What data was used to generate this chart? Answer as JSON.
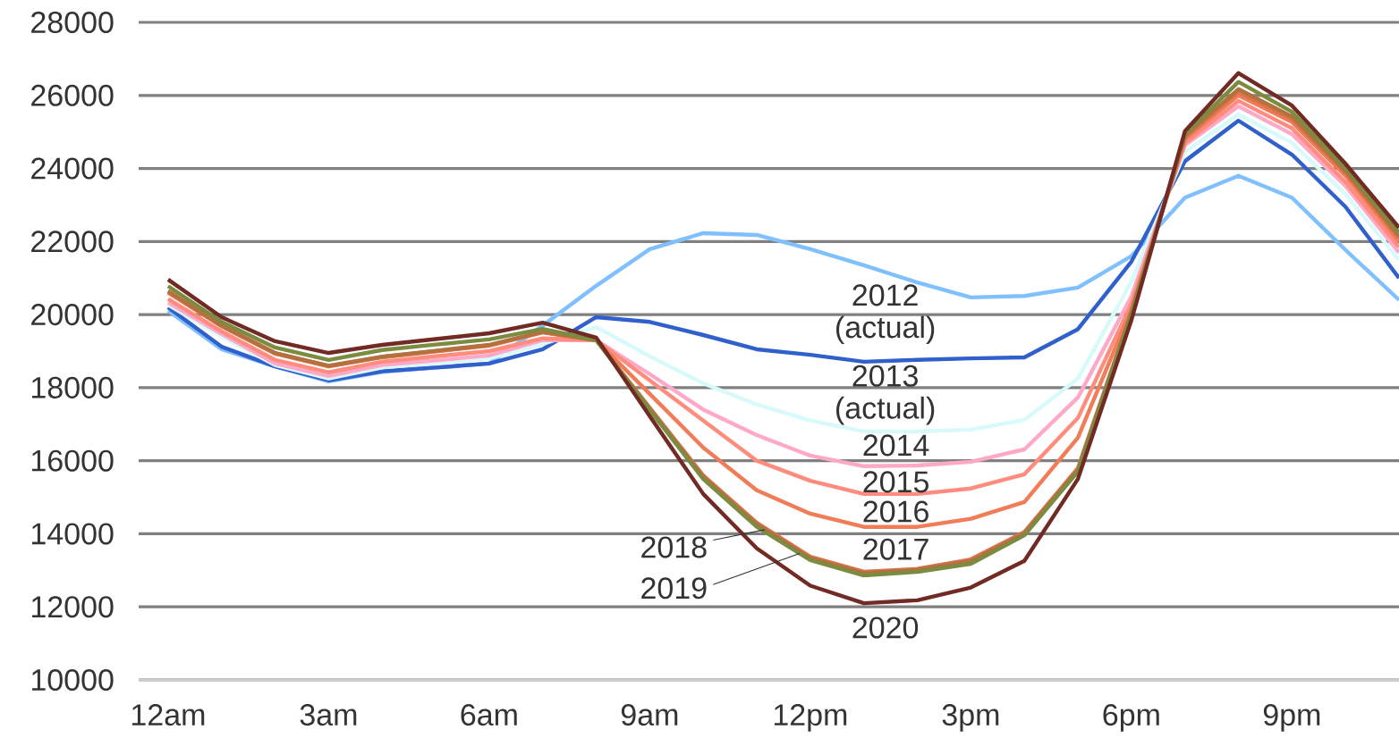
{
  "chart_data": {
    "type": "line",
    "categories": [
      "12am",
      null,
      null,
      "3am",
      null,
      null,
      "6am",
      null,
      null,
      "9am",
      null,
      null,
      "12pm",
      null,
      null,
      "3pm",
      null,
      null,
      "6pm",
      null,
      null,
      "9pm",
      null,
      null
    ],
    "ylim": [
      10000,
      28000
    ],
    "yticks": [
      10000,
      12000,
      14000,
      16000,
      18000,
      20000,
      22000,
      24000,
      26000,
      28000
    ],
    "grid": "y",
    "line_style": "solid",
    "series": [
      {
        "color": "#80c0ff",
        "values": [
          20110,
          19050,
          18580,
          18170,
          18430,
          18550,
          18660,
          19700,
          20790,
          21790,
          22230,
          22180,
          21790,
          21350,
          20880,
          20470,
          20510,
          20740,
          21600,
          23200,
          23800,
          23200,
          21770,
          20400
        ]
      },
      {
        "name": "2012 (actual)",
        "color": "#3060cc",
        "values": [
          20200,
          19120,
          18580,
          18200,
          18450,
          18550,
          18660,
          19050,
          19930,
          19800,
          19440,
          19050,
          18900,
          18710,
          18760,
          18800,
          18830,
          19600,
          21450,
          24200,
          25310,
          24380,
          22950,
          21000
        ]
      },
      {
        "name": "2013 (actual)",
        "color": "#d8fafa",
        "values": [
          20270,
          19400,
          18620,
          18250,
          18550,
          18680,
          18800,
          19200,
          19660,
          18860,
          18120,
          17540,
          17100,
          16800,
          16800,
          16850,
          17120,
          18250,
          20900,
          24450,
          25480,
          24700,
          23300,
          21500
        ]
      },
      {
        "name": "2014",
        "color": "#ffa8c8",
        "values": [
          20330,
          19470,
          18660,
          18320,
          18620,
          18750,
          18880,
          19300,
          19300,
          18370,
          17400,
          16700,
          16140,
          15850,
          15870,
          15970,
          16310,
          17730,
          20500,
          24640,
          25700,
          24940,
          23520,
          21700
        ]
      },
      {
        "name": "2015",
        "color": "#ff8c7c",
        "values": [
          20430,
          19540,
          18760,
          18420,
          18710,
          18860,
          19000,
          19350,
          19300,
          18200,
          17100,
          16000,
          15450,
          15090,
          15090,
          15240,
          15630,
          17170,
          20300,
          24700,
          25850,
          25100,
          23630,
          21850
        ]
      },
      {
        "name": "2016",
        "color": "#f07c58",
        "values": [
          20600,
          19680,
          18930,
          18580,
          18830,
          18990,
          19150,
          19510,
          19300,
          17830,
          16360,
          15190,
          14550,
          14190,
          14190,
          14410,
          14870,
          16630,
          20150,
          24800,
          26000,
          25270,
          23800,
          22000
        ]
      },
      {
        "name": "2017",
        "color": "#d9734a",
        "values": [
          20620,
          19690,
          18940,
          18590,
          18840,
          19000,
          19160,
          19520,
          19300,
          17450,
          15600,
          14300,
          13370,
          12960,
          13040,
          13300,
          14050,
          15800,
          20050,
          24850,
          26100,
          25350,
          23880,
          22100
        ]
      },
      {
        "name": "2018",
        "color": "#b3713f",
        "values": [
          20650,
          19700,
          18950,
          18600,
          18850,
          19010,
          19170,
          19530,
          19300,
          17420,
          15550,
          14250,
          13330,
          12920,
          13010,
          13250,
          14000,
          15750,
          20050,
          24900,
          26170,
          25420,
          23930,
          22150
        ]
      },
      {
        "name": "2019",
        "color": "#7b8b3f",
        "values": [
          20780,
          19800,
          19100,
          18760,
          19030,
          19180,
          19320,
          19610,
          19300,
          17390,
          15500,
          14190,
          13280,
          12860,
          12960,
          13180,
          13960,
          15700,
          20000,
          24940,
          26370,
          25550,
          24010,
          22250
        ]
      },
      {
        "name": "2020",
        "color": "#722b24",
        "values": [
          20960,
          19930,
          19270,
          18950,
          19170,
          19330,
          19490,
          19780,
          19370,
          17220,
          15090,
          13600,
          12580,
          12100,
          12180,
          12530,
          13260,
          15500,
          19850,
          25020,
          26610,
          25720,
          24130,
          22380
        ]
      }
    ]
  }
}
